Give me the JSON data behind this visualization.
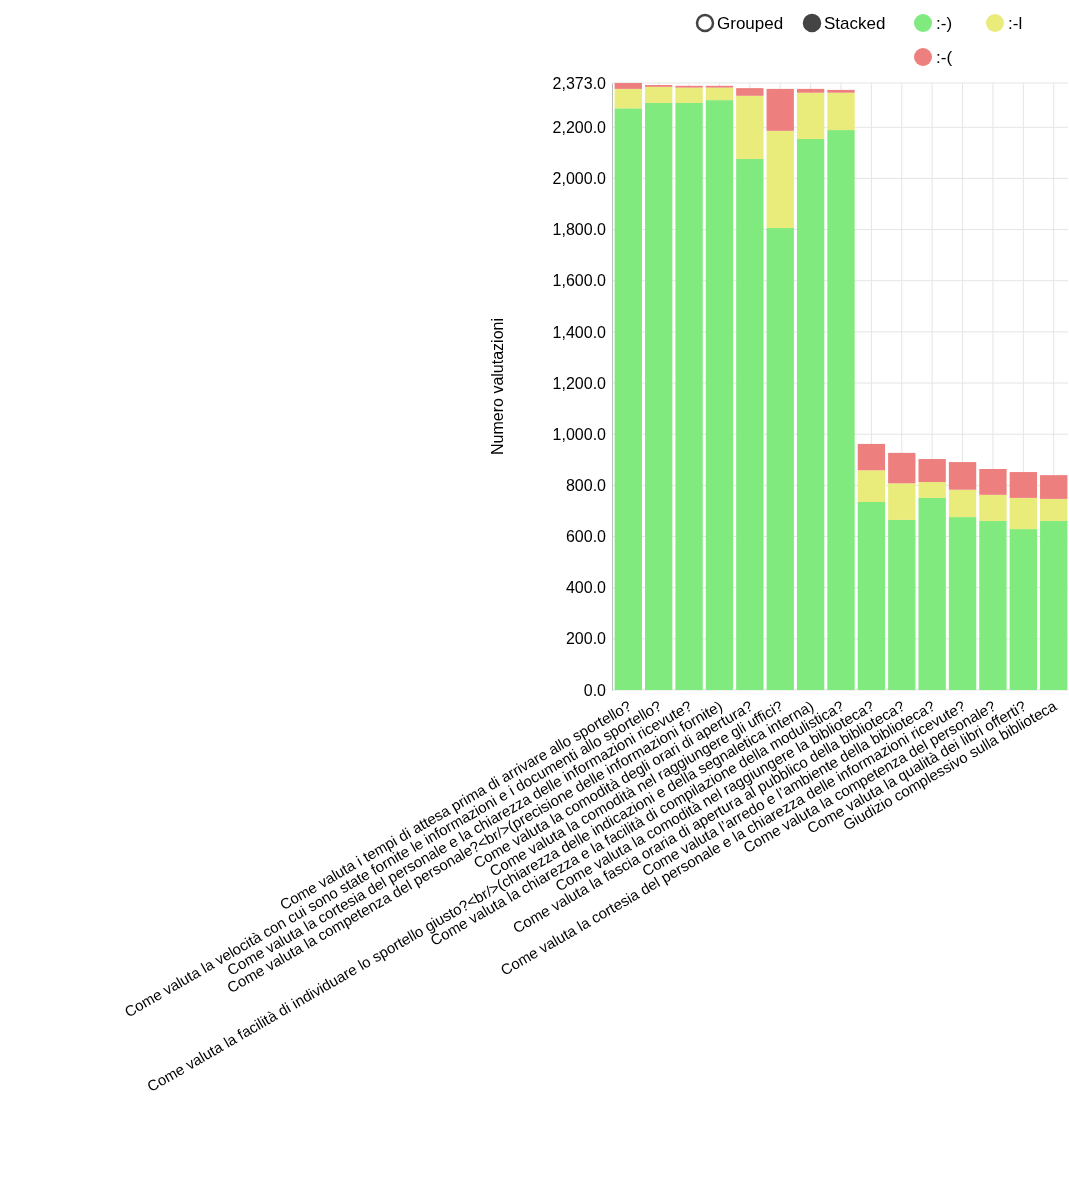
{
  "chart_data": {
    "type": "bar",
    "stacked": true,
    "ylabel": "Numero valutazioni",
    "legend": "top right",
    "grid": true,
    "annotations": [
      "Grouped",
      "Stacked"
    ],
    "categories": [
      "Come valuta i tempi di attesa prima di arrivare allo sportello?",
      "Come valuta la velocità con cui sono state fornite le informazioni e i documenti allo sportello?",
      "Come valuta la cortesia del personale e la chiarezza delle informazioni ricevute?",
      "Come valuta la competenza del personale?<br/>(precisione delle informazioni fornite)",
      "Come valuta la comodità degli orari di apertura?",
      "Come valuta la comodità nel raggiungere gli uffici?",
      "Come valuta la facilità di individuare lo sportello giusto?<br/>(chiarezza delle indicazioni e della segnaletica interna)",
      "Come valuta la chiarezza e la facilità di compilazione della modulistica?",
      "Come valuta la comodità nel raggiungere la biblioteca?",
      "Come valuta la fascia oraria di apertura al pubblico della biblioteca?",
      "Come valuta l’arredo e l’ambiente della biblioteca?",
      "Come valuta la cortesia del personale e la chiarezza delle informazioni ricevute?",
      "Come valuta la competenza del personale?",
      "Come valuta la qualità dei libri offerti?",
      "Giudizio complessivo sulla biblioteca"
    ],
    "series": [
      {
        "name": ":-)",
        "color": "#80ea7e",
        "values": [
          2274,
          2295,
          2295,
          2306,
          2076,
          1806,
          2154,
          2189,
          735,
          665,
          751,
          676,
          661,
          629,
          661
        ]
      },
      {
        "name": ":-l",
        "color": "#e9eb7a",
        "values": [
          76,
          63,
          60,
          49,
          247,
          380,
          181,
          146,
          124,
          143,
          62,
          107,
          102,
          122,
          86
        ]
      },
      {
        "name": ":-(",
        "color": "#ee7f7f",
        "values": [
          23,
          7,
          7,
          7,
          30,
          164,
          15,
          11,
          103,
          119,
          90,
          108,
          101,
          101,
          93
        ]
      }
    ],
    "ylim": [
      0,
      2373
    ],
    "yticks": [
      {
        "value": 0,
        "label": "0.0"
      },
      {
        "value": 200,
        "label": "200.0"
      },
      {
        "value": 400,
        "label": "400.0"
      },
      {
        "value": 600,
        "label": "600.0"
      },
      {
        "value": 800,
        "label": "800.0"
      },
      {
        "value": 1000,
        "label": "1,000.0"
      },
      {
        "value": 1200,
        "label": "1,200.0"
      },
      {
        "value": 1400,
        "label": "1,400.0"
      },
      {
        "value": 1600,
        "label": "1,600.0"
      },
      {
        "value": 1800,
        "label": "1,800.0"
      },
      {
        "value": 2000,
        "label": "2,000.0"
      },
      {
        "value": 2200,
        "label": "2,200.0"
      },
      {
        "value": 2373,
        "label": "2,373.0"
      }
    ]
  }
}
